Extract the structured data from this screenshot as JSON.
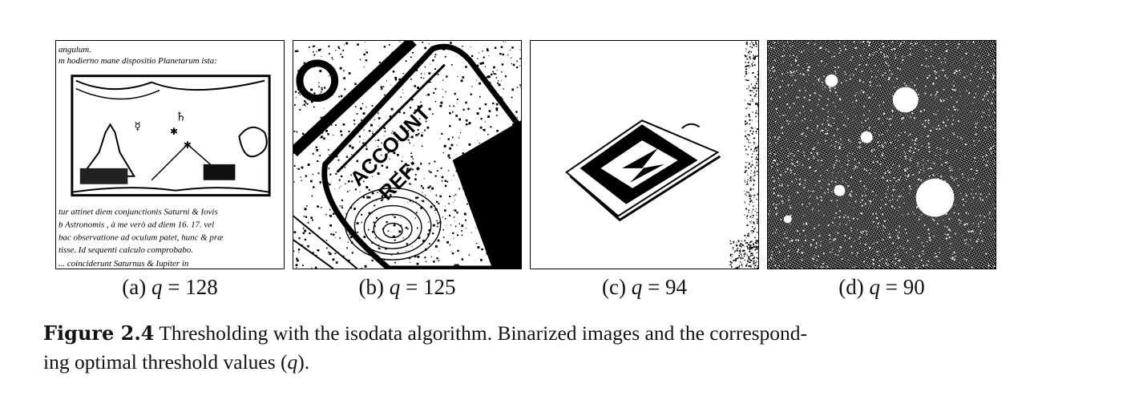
{
  "panels": [
    {
      "id": "a",
      "label": "(a)",
      "var": "q",
      "eq": "=",
      "value": "128",
      "text_top": [
        "angulum.",
        "m hodierno mane dispositio Planetarum ista:"
      ],
      "text_bottom": [
        "tur attinet diem conjunctionis Saturni & Iovis",
        "b Astronomis , à me verò ad diem 16. 17. vel",
        "bac observatione ad oculum patet, hunc & præ",
        "tisse. Id sequenti calculo comprobabo.",
        "... coinciderunt Saturnus & Iupiter in"
      ]
    },
    {
      "id": "b",
      "label": "(b)",
      "var": "q",
      "eq": "=",
      "value": "125",
      "card_text": [
        "ACCOUNT",
        "REF:"
      ]
    },
    {
      "id": "c",
      "label": "(c)",
      "var": "q",
      "eq": "=",
      "value": "94"
    },
    {
      "id": "d",
      "label": "(d)",
      "var": "q",
      "eq": "=",
      "value": "90"
    }
  ],
  "caption": {
    "label": "Figure 2.4",
    "line1": "Thresholding with the isodata algorithm. Binarized images and the correspond-",
    "line2_pre": "ing optimal threshold values (",
    "line2_var": "q",
    "line2_post": ")."
  }
}
